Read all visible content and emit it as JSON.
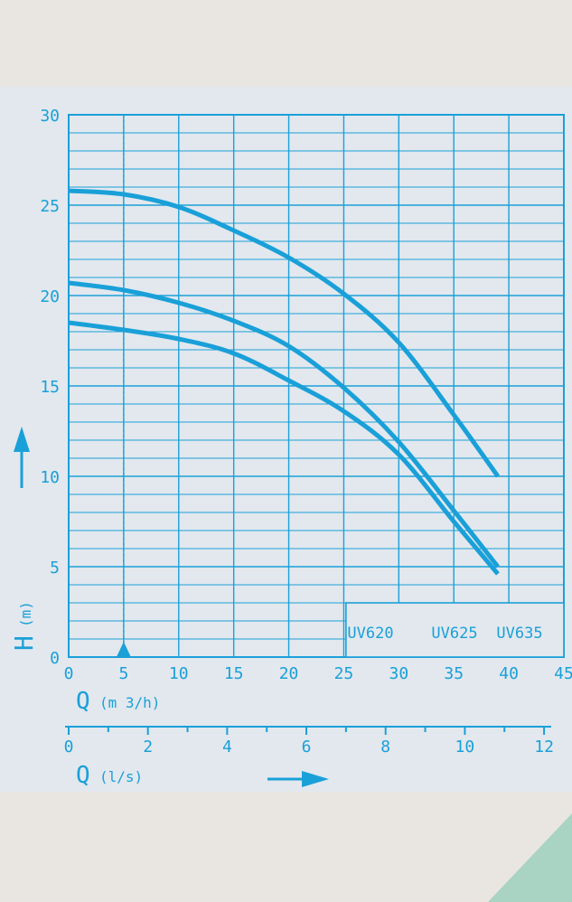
{
  "colors": {
    "line": "#1aa0d8",
    "page_bg": "#e9e6e1",
    "panel_bg": "#e2e8ee",
    "corner": "#a9d3c3"
  },
  "chart_data": {
    "type": "line",
    "xlabel": "Q",
    "xunit": "(m 3/h)",
    "x2label": "Q",
    "x2unit": "(l/s)",
    "ylabel": "H",
    "yunit": "(m)",
    "xlim": [
      0,
      45
    ],
    "ylim": [
      0,
      30
    ],
    "x2lim": [
      0,
      12.5
    ],
    "xticks": [
      0,
      5,
      10,
      15,
      20,
      25,
      30,
      35,
      40,
      45
    ],
    "yticks": [
      0,
      5,
      10,
      15,
      20,
      25,
      30
    ],
    "x2ticks": [
      0,
      2,
      4,
      6,
      8,
      10,
      12
    ],
    "marker_x": 5,
    "grid": true,
    "legend": [
      "UV620",
      "UV625",
      "UV635"
    ],
    "series": [
      {
        "name": "UV635",
        "x": [
          0,
          5,
          10,
          15,
          20,
          25,
          30,
          35,
          39
        ],
        "y": [
          25.8,
          25.6,
          24.9,
          23.6,
          22.1,
          20.1,
          17.4,
          13.4,
          10
        ]
      },
      {
        "name": "UV625",
        "x": [
          0,
          5,
          10,
          15,
          20,
          25,
          30,
          35,
          39
        ],
        "y": [
          20.7,
          20.3,
          19.6,
          18.6,
          17.2,
          14.9,
          11.9,
          8.1,
          5
        ]
      },
      {
        "name": "UV620",
        "x": [
          0,
          5,
          10,
          15,
          20,
          25,
          30,
          35,
          39
        ],
        "y": [
          18.5,
          18.1,
          17.6,
          16.8,
          15.3,
          13.6,
          11.2,
          7.5,
          4.6
        ]
      }
    ]
  }
}
